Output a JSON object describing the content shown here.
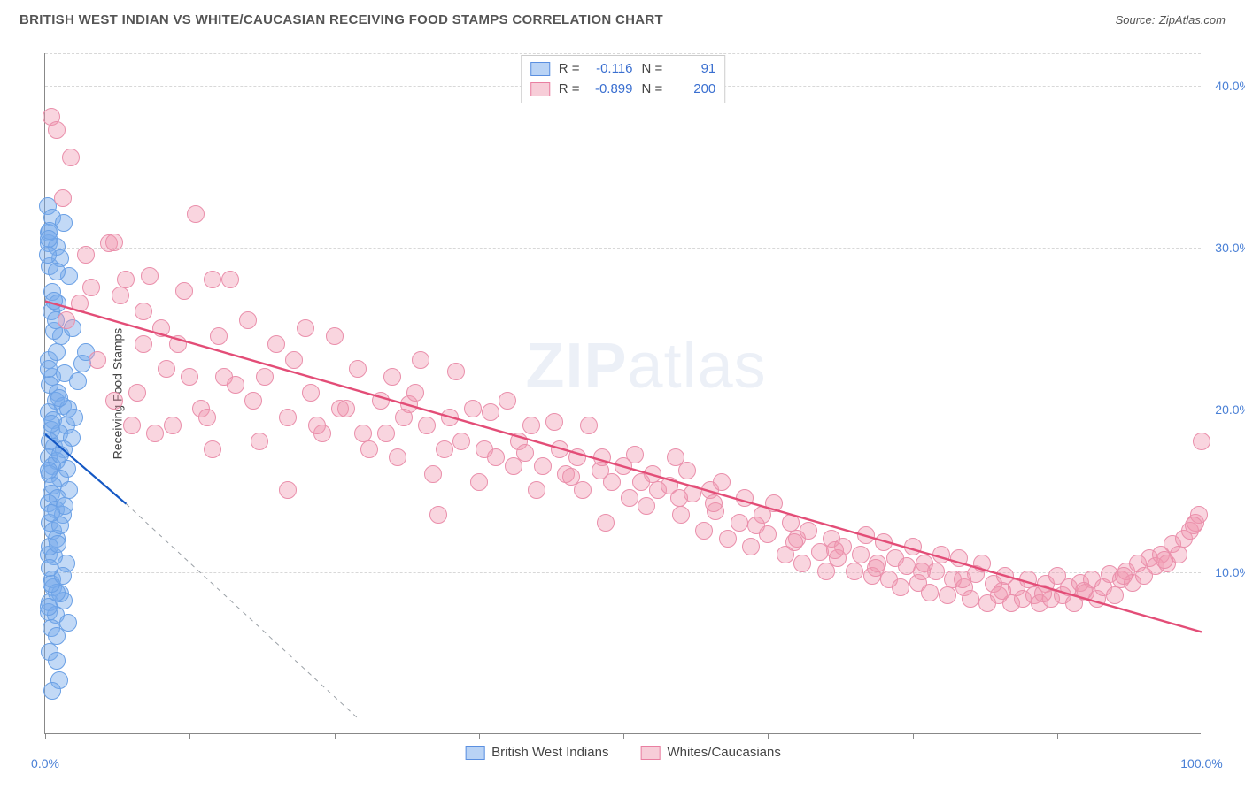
{
  "title": "BRITISH WEST INDIAN VS WHITE/CAUCASIAN RECEIVING FOOD STAMPS CORRELATION CHART",
  "source_label": "Source:",
  "source_name": "ZipAtlas.com",
  "ylabel": "Receiving Food Stamps",
  "watermark_bold": "ZIP",
  "watermark_light": "atlas",
  "chart": {
    "type": "scatter",
    "xlim": [
      0,
      100
    ],
    "ylim": [
      0,
      42
    ],
    "y_ticks": [
      10,
      20,
      30,
      40
    ],
    "y_tick_labels": [
      "10.0%",
      "20.0%",
      "30.0%",
      "40.0%"
    ],
    "x_ticks": [
      0,
      12.5,
      25,
      37.5,
      50,
      62.5,
      75,
      87.5,
      100
    ],
    "x_tick_labels_shown": {
      "0": "0.0%",
      "100": "100.0%"
    },
    "background_color": "#ffffff",
    "grid_color": "#d8d8d8",
    "axis_color": "#888888"
  },
  "legend_stats": [
    {
      "swatch_fill": "#b9d3f5",
      "swatch_border": "#5a8fe0",
      "r_label": "R =",
      "r": "-0.116",
      "n_label": "N =",
      "n": "91"
    },
    {
      "swatch_fill": "#f7cdd8",
      "swatch_border": "#e97fa1",
      "r_label": "R =",
      "r": "-0.899",
      "n_label": "N =",
      "n": "200"
    }
  ],
  "bottom_legend": [
    {
      "swatch_fill": "#b9d3f5",
      "swatch_border": "#5a8fe0",
      "label": "British West Indians"
    },
    {
      "swatch_fill": "#f7cdd8",
      "swatch_border": "#e97fa1",
      "label": "Whites/Caucasians"
    }
  ],
  "series": [
    {
      "name": "British West Indians",
      "fill": "rgba(120,170,235,0.45)",
      "stroke": "#6aa0e5",
      "trend": {
        "x1": 0,
        "y1": 18.5,
        "x2": 7,
        "y2": 14.2,
        "color": "#1458c4",
        "width": 2.2,
        "dash": false,
        "ext_x2": 27,
        "ext_y2": 1.0,
        "ext_dash": true,
        "ext_color": "#9aa0a6"
      },
      "points": [
        [
          0.2,
          32.5
        ],
        [
          0.6,
          31.8
        ],
        [
          0.3,
          30.2
        ],
        [
          1.6,
          31.5
        ],
        [
          1.0,
          30.0
        ],
        [
          0.4,
          28.8
        ],
        [
          1.3,
          29.3
        ],
        [
          2.1,
          28.2
        ],
        [
          0.5,
          26.0
        ],
        [
          0.2,
          29.5
        ],
        [
          1.4,
          24.5
        ],
        [
          2.4,
          25.0
        ],
        [
          0.8,
          24.8
        ],
        [
          0.3,
          23.0
        ],
        [
          1.0,
          23.5
        ],
        [
          3.2,
          22.8
        ],
        [
          0.6,
          22.0
        ],
        [
          1.7,
          22.2
        ],
        [
          0.4,
          21.5
        ],
        [
          2.8,
          21.7
        ],
        [
          1.1,
          21.0
        ],
        [
          0.9,
          20.5
        ],
        [
          1.5,
          20.2
        ],
        [
          0.3,
          19.8
        ],
        [
          2.0,
          20.0
        ],
        [
          0.7,
          19.3
        ],
        [
          1.8,
          19.0
        ],
        [
          0.5,
          18.7
        ],
        [
          1.2,
          18.5
        ],
        [
          0.4,
          18.0
        ],
        [
          2.3,
          18.2
        ],
        [
          0.8,
          17.7
        ],
        [
          1.6,
          17.5
        ],
        [
          0.3,
          17.0
        ],
        [
          1.0,
          16.8
        ],
        [
          0.6,
          16.5
        ],
        [
          1.9,
          16.3
        ],
        [
          0.4,
          16.0
        ],
        [
          1.3,
          15.7
        ],
        [
          0.7,
          15.3
        ],
        [
          2.1,
          15.0
        ],
        [
          0.5,
          14.8
        ],
        [
          1.1,
          14.5
        ],
        [
          0.3,
          14.2
        ],
        [
          0.9,
          13.8
        ],
        [
          1.5,
          13.5
        ],
        [
          0.4,
          13.0
        ],
        [
          0.7,
          12.5
        ],
        [
          1.0,
          12.0
        ],
        [
          0.3,
          11.0
        ],
        [
          1.8,
          10.5
        ],
        [
          0.6,
          9.5
        ],
        [
          0.7,
          9.0
        ],
        [
          0.4,
          8.1
        ],
        [
          1.6,
          8.2
        ],
        [
          1.3,
          8.6
        ],
        [
          0.3,
          7.5
        ],
        [
          0.9,
          7.3
        ],
        [
          0.5,
          6.5
        ],
        [
          1.0,
          6.0
        ],
        [
          0.4,
          5.0
        ],
        [
          1.2,
          3.3
        ],
        [
          0.6,
          2.6
        ],
        [
          0.3,
          7.8
        ],
        [
          1.0,
          8.7
        ],
        [
          0.5,
          9.2
        ],
        [
          1.5,
          9.7
        ],
        [
          0.8,
          10.9
        ],
        [
          0.4,
          11.5
        ],
        [
          2.0,
          6.8
        ],
        [
          1.3,
          12.8
        ],
        [
          0.3,
          30.9
        ],
        [
          0.6,
          27.2
        ],
        [
          1.1,
          26.5
        ],
        [
          0.9,
          25.5
        ],
        [
          1.3,
          17.2
        ],
        [
          0.3,
          16.2
        ],
        [
          1.7,
          14.0
        ],
        [
          0.5,
          19.1
        ],
        [
          1.2,
          20.7
        ],
        [
          0.3,
          22.5
        ],
        [
          2.5,
          19.5
        ],
        [
          0.4,
          31.0
        ],
        [
          3.5,
          23.5
        ],
        [
          0.5,
          13.6
        ],
        [
          1.1,
          11.7
        ],
        [
          0.4,
          10.2
        ],
        [
          0.8,
          26.7
        ],
        [
          1.0,
          28.5
        ],
        [
          0.3,
          30.5
        ],
        [
          1.0,
          4.5
        ]
      ]
    },
    {
      "name": "Whites/Caucasians",
      "fill": "rgba(240,150,175,0.40)",
      "stroke": "#ea8fab",
      "trend": {
        "x1": 0,
        "y1": 26.7,
        "x2": 100,
        "y2": 6.3,
        "color": "#e34d77",
        "width": 2.4,
        "dash": false
      },
      "points": [
        [
          0.5,
          38.0
        ],
        [
          1.0,
          37.2
        ],
        [
          2.2,
          35.5
        ],
        [
          1.5,
          33.0
        ],
        [
          3.5,
          29.5
        ],
        [
          5.5,
          30.2
        ],
        [
          4.0,
          27.5
        ],
        [
          3.0,
          26.5
        ],
        [
          6.5,
          27.0
        ],
        [
          6.0,
          30.3
        ],
        [
          7.0,
          28.0
        ],
        [
          8.5,
          26.0
        ],
        [
          9.0,
          28.2
        ],
        [
          10.0,
          25.0
        ],
        [
          12.0,
          27.3
        ],
        [
          11.0,
          19.0
        ],
        [
          13.0,
          32.0
        ],
        [
          14.5,
          28.0
        ],
        [
          15.0,
          24.5
        ],
        [
          13.5,
          20.0
        ],
        [
          10.5,
          22.5
        ],
        [
          8.0,
          21.0
        ],
        [
          9.5,
          18.5
        ],
        [
          11.5,
          24.0
        ],
        [
          14.0,
          19.5
        ],
        [
          14.5,
          17.5
        ],
        [
          15.5,
          22.0
        ],
        [
          16.0,
          28.0
        ],
        [
          17.5,
          25.5
        ],
        [
          18.0,
          20.5
        ],
        [
          18.5,
          18.0
        ],
        [
          20.0,
          24.0
        ],
        [
          21.0,
          19.5
        ],
        [
          21.5,
          23.0
        ],
        [
          22.5,
          25.0
        ],
        [
          23.0,
          21.0
        ],
        [
          24.0,
          18.5
        ],
        [
          25.0,
          24.5
        ],
        [
          25.5,
          20.0
        ],
        [
          27.0,
          22.5
        ],
        [
          27.5,
          18.5
        ],
        [
          28.0,
          17.5
        ],
        [
          29.0,
          20.5
        ],
        [
          30.0,
          22.0
        ],
        [
          30.5,
          17.0
        ],
        [
          31.5,
          20.3
        ],
        [
          32.0,
          21.0
        ],
        [
          33.0,
          19.0
        ],
        [
          33.5,
          16.0
        ],
        [
          34.0,
          13.5
        ],
        [
          35.0,
          19.5
        ],
        [
          35.5,
          22.3
        ],
        [
          36.0,
          18.0
        ],
        [
          37.0,
          20.0
        ],
        [
          37.5,
          15.5
        ],
        [
          38.5,
          19.8
        ],
        [
          39.0,
          17.0
        ],
        [
          40.0,
          20.5
        ],
        [
          40.5,
          16.5
        ],
        [
          41.0,
          18.0
        ],
        [
          42.0,
          19.0
        ],
        [
          42.5,
          15.0
        ],
        [
          43.0,
          16.5
        ],
        [
          44.0,
          19.2
        ],
        [
          44.5,
          17.5
        ],
        [
          45.0,
          16.0
        ],
        [
          46.0,
          17.0
        ],
        [
          46.5,
          15.0
        ],
        [
          47.0,
          19.0
        ],
        [
          48.0,
          16.2
        ],
        [
          48.5,
          13.0
        ],
        [
          49.0,
          15.5
        ],
        [
          50.0,
          16.5
        ],
        [
          50.5,
          14.5
        ],
        [
          51.0,
          17.2
        ],
        [
          52.0,
          14.0
        ],
        [
          52.5,
          16.0
        ],
        [
          53.0,
          15.0
        ],
        [
          54.0,
          15.3
        ],
        [
          54.5,
          17.0
        ],
        [
          55.0,
          13.5
        ],
        [
          55.5,
          16.2
        ],
        [
          56.0,
          14.8
        ],
        [
          57.0,
          12.5
        ],
        [
          57.5,
          15.0
        ],
        [
          58.0,
          13.7
        ],
        [
          58.5,
          15.5
        ],
        [
          59.0,
          12.0
        ],
        [
          60.0,
          13.0
        ],
        [
          60.5,
          14.5
        ],
        [
          61.0,
          11.5
        ],
        [
          62.0,
          13.5
        ],
        [
          62.5,
          12.3
        ],
        [
          63.0,
          14.2
        ],
        [
          64.0,
          11.0
        ],
        [
          64.5,
          13.0
        ],
        [
          65.0,
          12.0
        ],
        [
          65.5,
          10.5
        ],
        [
          66.0,
          12.5
        ],
        [
          67.0,
          11.2
        ],
        [
          67.5,
          10.0
        ],
        [
          68.0,
          12.0
        ],
        [
          68.5,
          10.8
        ],
        [
          69.0,
          11.5
        ],
        [
          70.0,
          10.0
        ],
        [
          70.5,
          11.0
        ],
        [
          71.0,
          12.2
        ],
        [
          71.5,
          9.7
        ],
        [
          72.0,
          10.5
        ],
        [
          72.5,
          11.8
        ],
        [
          73.0,
          9.5
        ],
        [
          73.5,
          10.8
        ],
        [
          74.0,
          9.0
        ],
        [
          74.5,
          10.3
        ],
        [
          75.0,
          11.5
        ],
        [
          75.5,
          9.3
        ],
        [
          76.0,
          10.5
        ],
        [
          76.5,
          8.7
        ],
        [
          77.0,
          10.0
        ],
        [
          77.5,
          11.0
        ],
        [
          78.0,
          8.5
        ],
        [
          78.5,
          9.5
        ],
        [
          79.0,
          10.8
        ],
        [
          79.5,
          9.0
        ],
        [
          80.0,
          8.3
        ],
        [
          80.5,
          9.8
        ],
        [
          81.0,
          10.5
        ],
        [
          81.5,
          8.0
        ],
        [
          82.0,
          9.2
        ],
        [
          82.5,
          8.5
        ],
        [
          83.0,
          9.7
        ],
        [
          83.5,
          8.0
        ],
        [
          84.0,
          9.0
        ],
        [
          84.5,
          8.3
        ],
        [
          85.0,
          9.5
        ],
        [
          85.5,
          8.5
        ],
        [
          86.0,
          8.0
        ],
        [
          86.5,
          9.2
        ],
        [
          87.0,
          8.3
        ],
        [
          87.5,
          9.7
        ],
        [
          88.0,
          8.5
        ],
        [
          88.5,
          9.0
        ],
        [
          89.0,
          8.0
        ],
        [
          89.5,
          9.3
        ],
        [
          90.0,
          8.7
        ],
        [
          90.5,
          9.5
        ],
        [
          91.0,
          8.3
        ],
        [
          91.5,
          9.0
        ],
        [
          92.0,
          9.8
        ],
        [
          92.5,
          8.5
        ],
        [
          93.0,
          9.5
        ],
        [
          93.5,
          10.0
        ],
        [
          94.0,
          9.3
        ],
        [
          94.5,
          10.5
        ],
        [
          95.0,
          9.7
        ],
        [
          95.5,
          10.8
        ],
        [
          96.0,
          10.3
        ],
        [
          96.5,
          11.0
        ],
        [
          97.0,
          10.5
        ],
        [
          97.5,
          11.7
        ],
        [
          98.0,
          11.0
        ],
        [
          98.5,
          12.0
        ],
        [
          99.0,
          12.5
        ],
        [
          99.5,
          13.0
        ],
        [
          99.8,
          13.5
        ],
        [
          100.0,
          18.0
        ],
        [
          1.8,
          25.5
        ],
        [
          4.5,
          23.0
        ],
        [
          6.0,
          20.5
        ],
        [
          7.5,
          19.0
        ],
        [
          8.5,
          24.0
        ],
        [
          12.5,
          22.0
        ],
        [
          16.5,
          21.5
        ],
        [
          19.0,
          22.0
        ],
        [
          23.5,
          19.0
        ],
        [
          26.0,
          20.0
        ],
        [
          29.5,
          18.5
        ],
        [
          31.0,
          19.5
        ],
        [
          34.5,
          17.5
        ],
        [
          38.0,
          17.5
        ],
        [
          41.5,
          17.3
        ],
        [
          45.5,
          15.8
        ],
        [
          48.2,
          17.0
        ],
        [
          51.5,
          15.5
        ],
        [
          54.8,
          14.5
        ],
        [
          57.8,
          14.2
        ],
        [
          61.5,
          12.8
        ],
        [
          64.8,
          11.8
        ],
        [
          68.3,
          11.3
        ],
        [
          71.8,
          10.2
        ],
        [
          75.8,
          10.0
        ],
        [
          79.3,
          9.5
        ],
        [
          82.8,
          8.8
        ],
        [
          86.3,
          8.6
        ],
        [
          89.8,
          8.8
        ],
        [
          93.3,
          9.7
        ],
        [
          96.8,
          10.7
        ],
        [
          99.3,
          12.8
        ],
        [
          21.0,
          15.0
        ],
        [
          32.5,
          23.0
        ]
      ]
    }
  ]
}
